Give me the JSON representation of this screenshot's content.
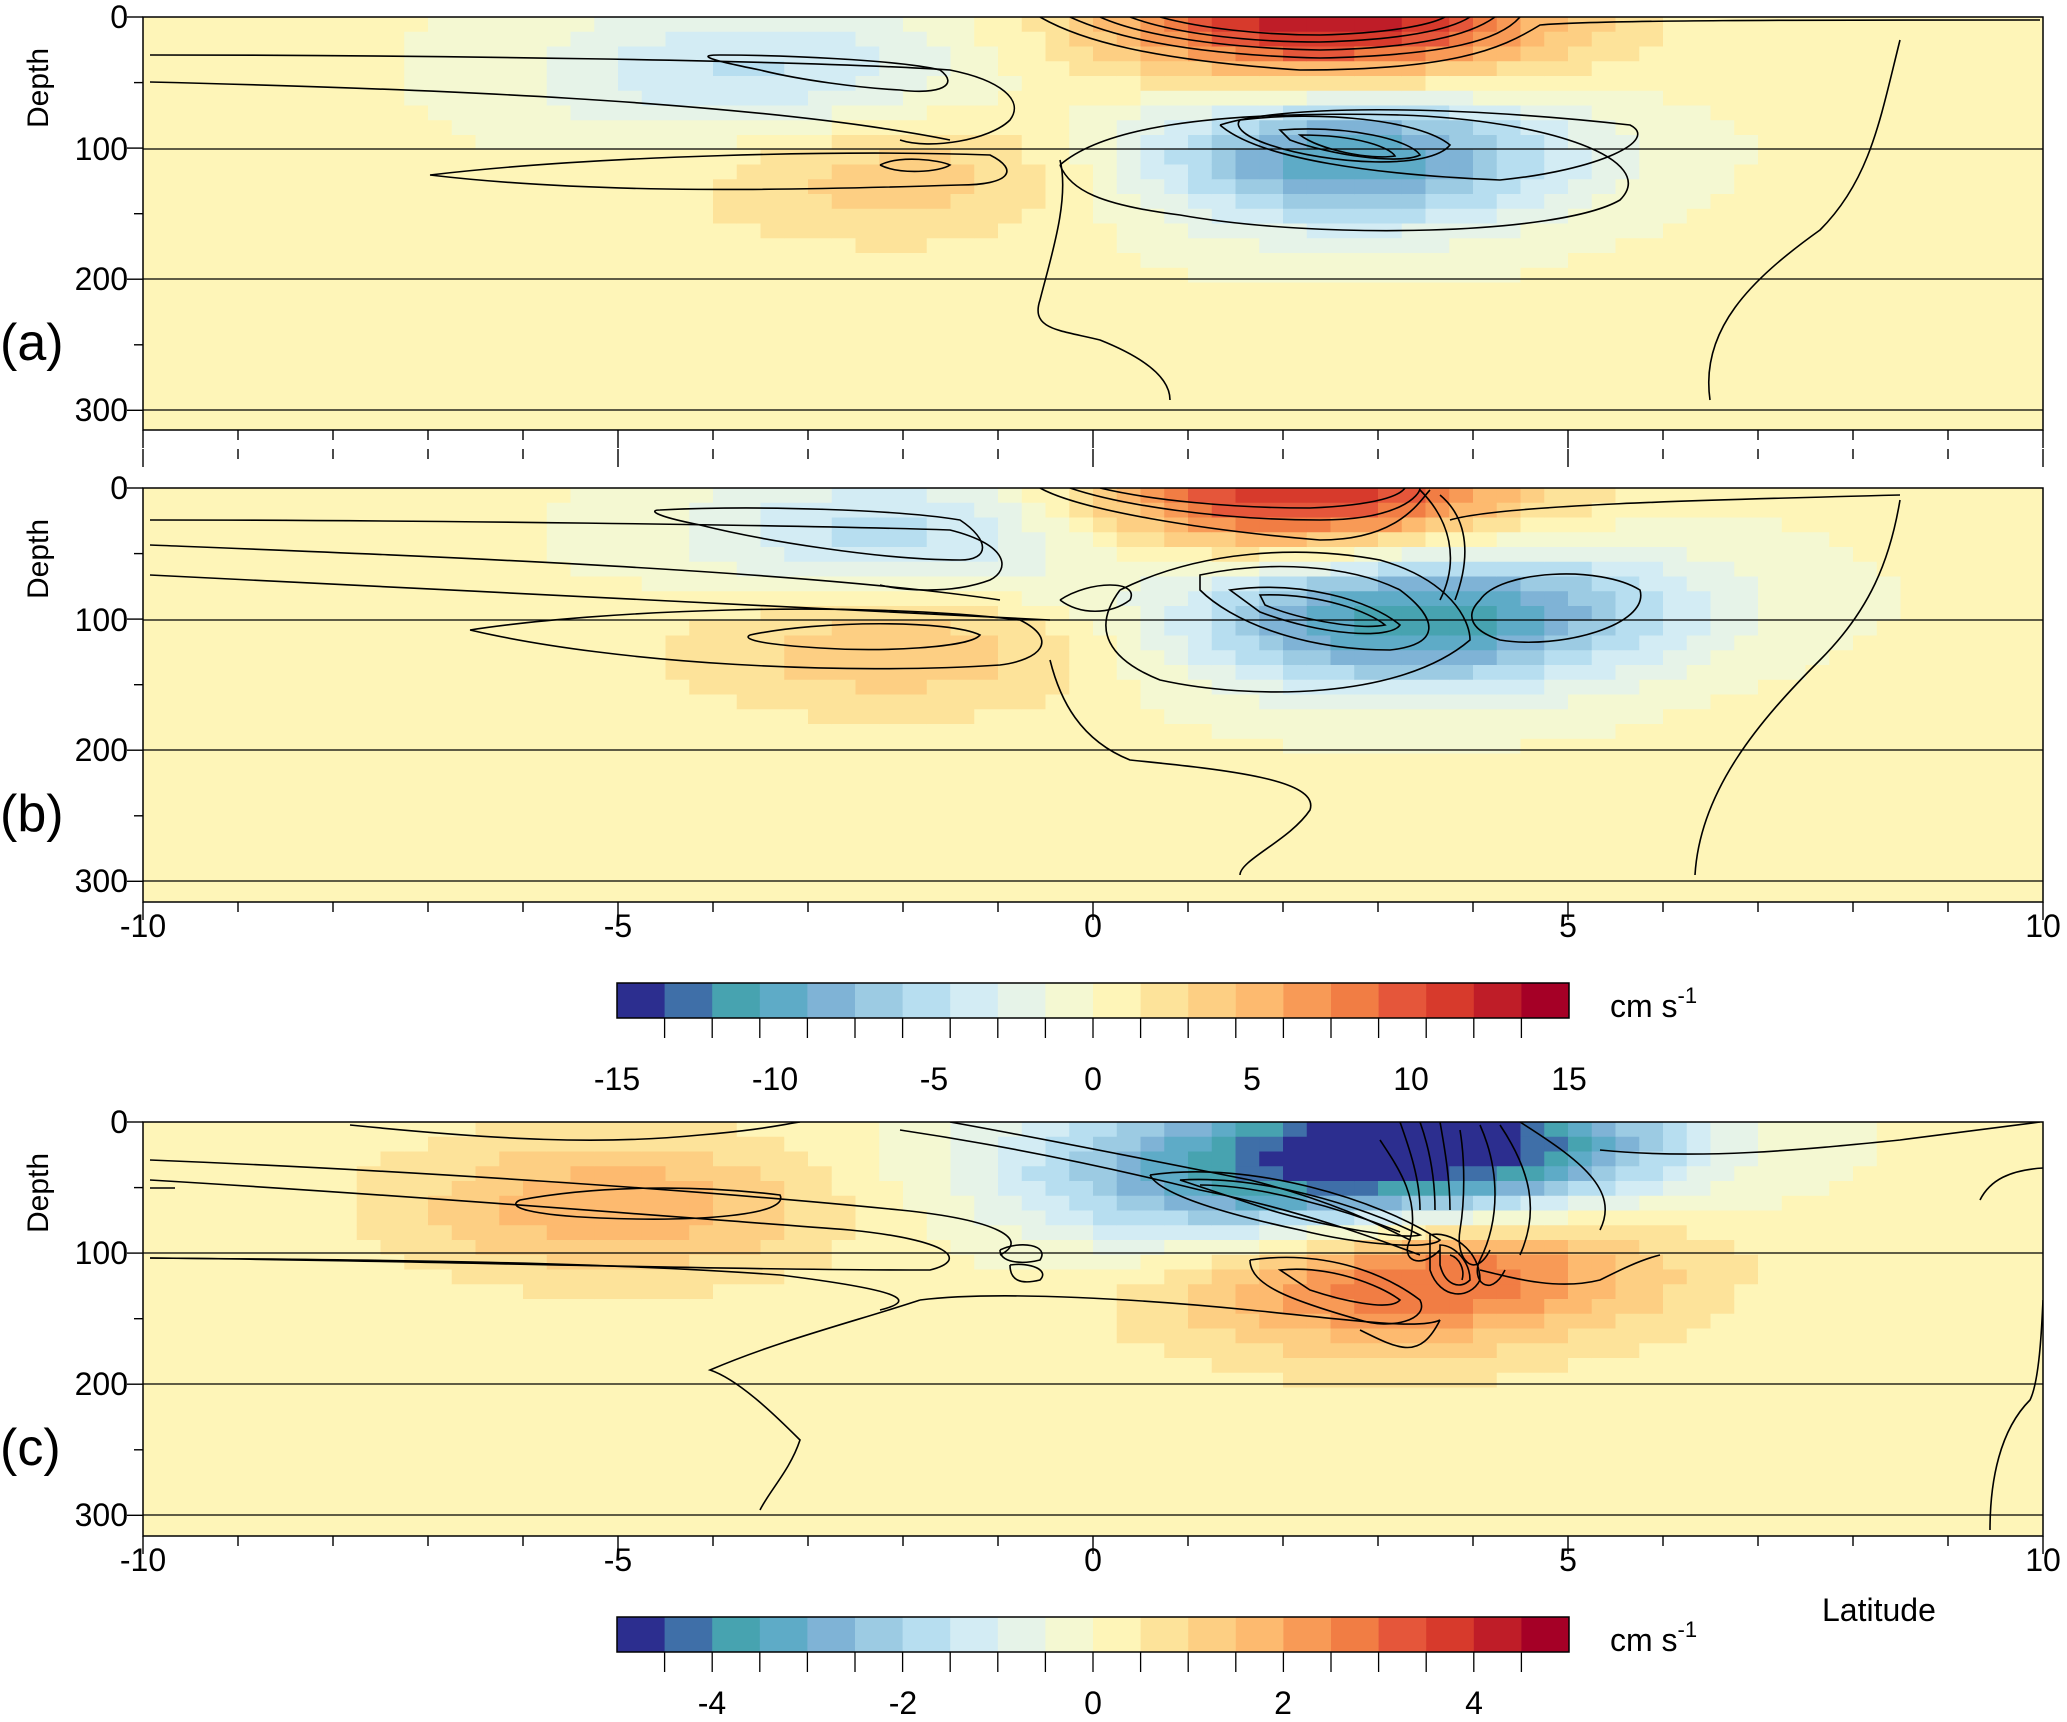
{
  "palette": [
    "#2c2e8f",
    "#3f6fa8",
    "#47a3b0",
    "#5eabc7",
    "#7fb3d6",
    "#9ccbe3",
    "#b7def0",
    "#d3ecf4",
    "#e6f3e8",
    "#f4f8d2",
    "#fef5b8",
    "#fde39a",
    "#fdcf83",
    "#fdba6f",
    "#f89a56",
    "#f17d44",
    "#e5563a",
    "#d73a2c",
    "#bf1d28",
    "#a50026"
  ],
  "colorbar_ticks_top": [
    "-15",
    "-10",
    "-5",
    "0",
    "5",
    "10",
    "15"
  ],
  "colorbar_ticks_bottom": [
    "-4",
    "-2",
    "0",
    "2",
    "4"
  ],
  "colorbar_unit": "cm s",
  "colorbar_unit_exp": "-1",
  "latitude_label": "Latitude",
  "chart_data": [
    {
      "panel_label": "(a)",
      "type": "heatmap",
      "ylabel": "Depth",
      "y_ticks": [
        "0",
        "100",
        "200",
        "300"
      ],
      "ylim": [
        315,
        0
      ],
      "xlim": [
        -10,
        10
      ],
      "clim": [
        -15,
        15
      ],
      "field_units": "cm s-1",
      "features": [
        {
          "lat": 2.5,
          "depth": 0,
          "value": 13.5
        },
        {
          "lat": -3.5,
          "depth": 45,
          "value": -5.5
        },
        {
          "lat": 2.7,
          "depth": 105,
          "value": -11
        },
        {
          "lat": -2.0,
          "depth": 115,
          "value": 4
        },
        {
          "lat": 8.8,
          "depth": 200,
          "value": 1
        }
      ]
    },
    {
      "panel_label": "(b)",
      "type": "heatmap",
      "ylabel": "Depth",
      "y_ticks": [
        "0",
        "100",
        "200",
        "300"
      ],
      "x_ticks": [
        "-10",
        "-5",
        "0",
        "5",
        "10"
      ],
      "ylim": [
        315,
        0
      ],
      "xlim": [
        -10,
        10
      ],
      "clim": [
        -15,
        15
      ],
      "field_units": "cm s-1",
      "features": [
        {
          "lat": 2.2,
          "depth": 0,
          "value": 12.5
        },
        {
          "lat": -2.0,
          "depth": 40,
          "value": -6
        },
        {
          "lat": 3.0,
          "depth": 100,
          "value": -10
        },
        {
          "lat": 4.8,
          "depth": 90,
          "value": -4
        },
        {
          "lat": -2.0,
          "depth": 115,
          "value": 4.5
        },
        {
          "lat": 8.8,
          "depth": 200,
          "value": 1
        }
      ]
    },
    {
      "panel_label": "(c)",
      "type": "heatmap",
      "ylabel": "Depth",
      "y_ticks": [
        "0",
        "100",
        "200",
        "300"
      ],
      "x_ticks": [
        "-10",
        "-5",
        "0",
        "5",
        "10"
      ],
      "xlabel": "Latitude",
      "ylim": [
        315,
        0
      ],
      "xlim": [
        -10,
        10
      ],
      "clim": [
        -5,
        5
      ],
      "field_units": "cm s-1",
      "features": [
        {
          "lat": -5.0,
          "depth": 65,
          "value": 1.8
        },
        {
          "lat": 2.0,
          "depth": 60,
          "value": -2.2
        },
        {
          "lat": 3.8,
          "depth": 15,
          "value": -5
        },
        {
          "lat": 2.7,
          "depth": 125,
          "value": 1.6
        },
        {
          "lat": 3.9,
          "depth": 105,
          "value": 2.2
        },
        {
          "lat": 0.5,
          "depth": 30,
          "value": -1.4
        },
        {
          "lat": 3.0,
          "depth": 260,
          "value": 0.3
        }
      ]
    }
  ]
}
